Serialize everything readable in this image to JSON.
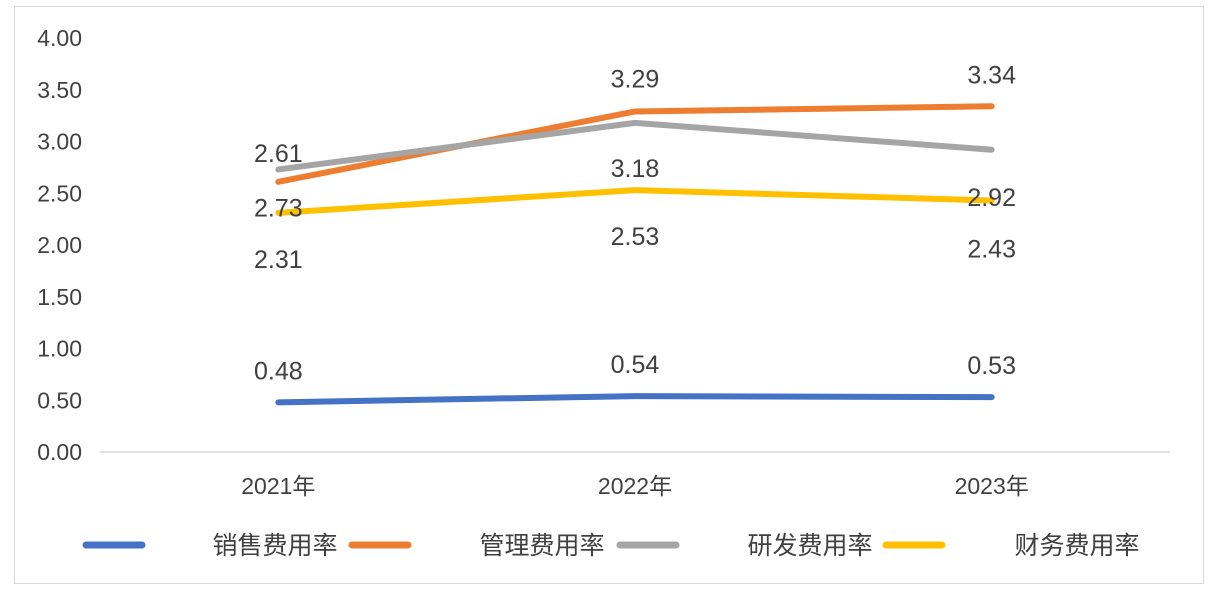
{
  "chart_data": {
    "type": "line",
    "title": "",
    "xlabel": "",
    "ylabel": "",
    "categories": [
      "2021年",
      "2022年",
      "2023年"
    ],
    "ylim": [
      0,
      4
    ],
    "yticks": [
      "0.00",
      "0.50",
      "1.00",
      "1.50",
      "2.00",
      "2.50",
      "3.00",
      "3.50",
      "4.00"
    ],
    "grid": false,
    "legend": "bottom",
    "series": [
      {
        "name": "销售费用率",
        "color": "#4472C4",
        "values": [
          0.48,
          0.54,
          0.53
        ],
        "labels": [
          "0.48",
          "0.54",
          "0.53"
        ]
      },
      {
        "name": "管理费用率",
        "color": "#ED7D31",
        "values": [
          2.61,
          3.29,
          3.34
        ],
        "labels": [
          "2.61",
          "3.29",
          "3.34"
        ]
      },
      {
        "name": "研发费用率",
        "color": "#A5A5A5",
        "values": [
          2.73,
          3.18,
          2.92
        ],
        "labels": [
          "2.73",
          "3.18",
          "2.92"
        ]
      },
      {
        "name": "财务费用率",
        "color": "#FFC000",
        "values": [
          2.31,
          2.53,
          2.43
        ],
        "labels": [
          "2.31",
          "2.53",
          "2.43"
        ]
      }
    ]
  }
}
